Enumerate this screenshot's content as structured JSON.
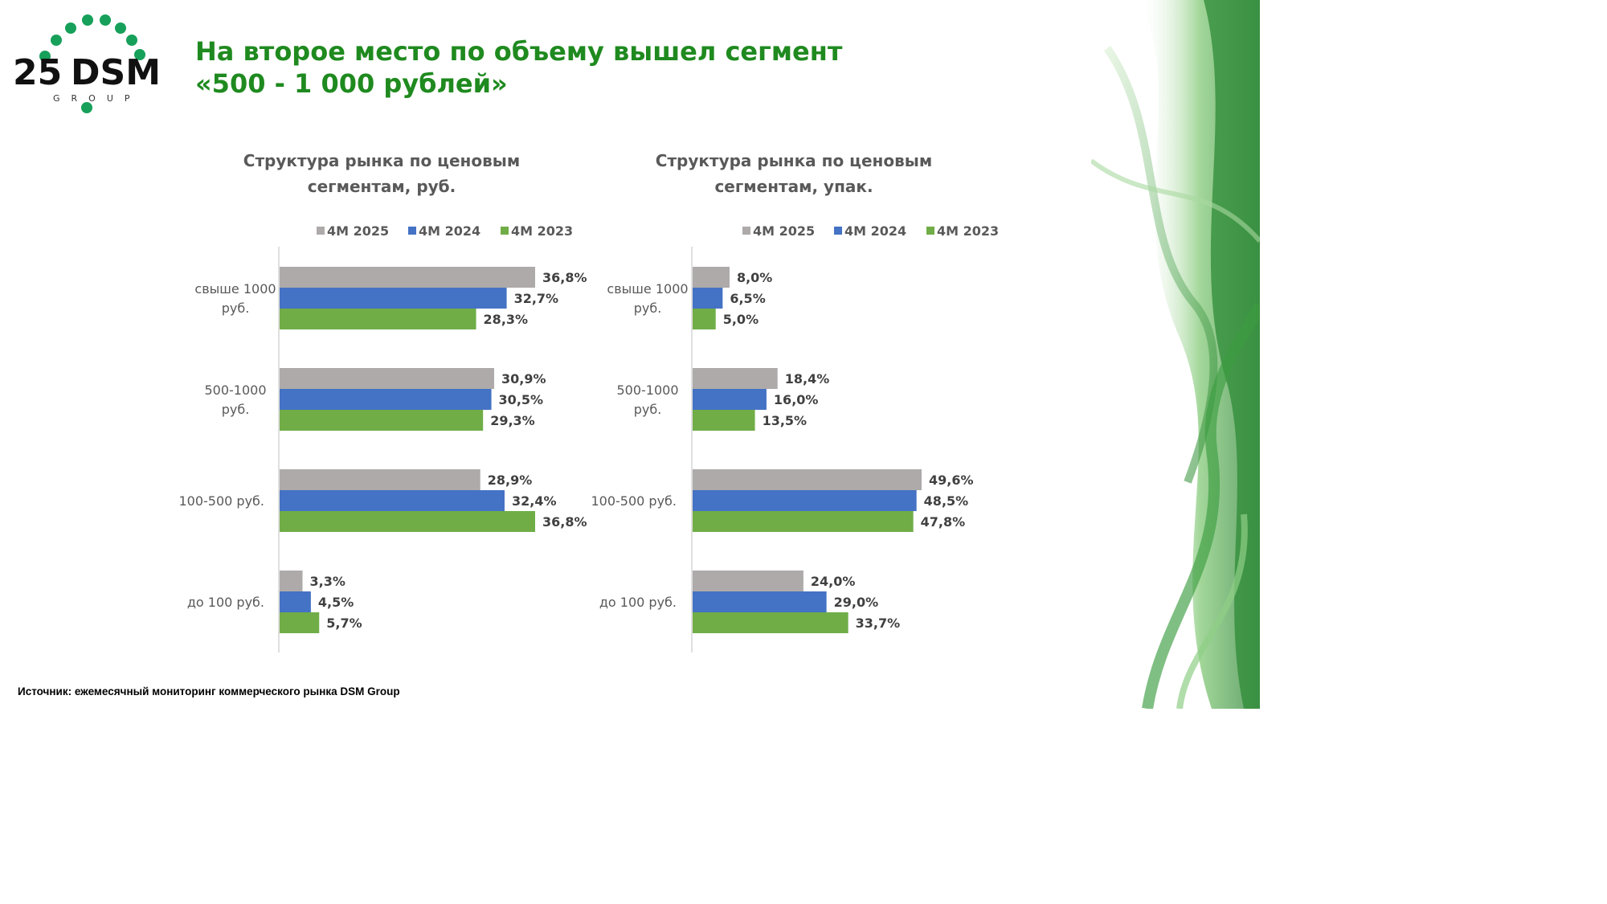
{
  "logo": {
    "number": "25",
    "brand": "DSM",
    "sub": "GROUP"
  },
  "headline": {
    "line1": "На второе место по объему вышел сегмент",
    "line2": "«500 - 1 000 рублей»"
  },
  "source": "Источник: ежемесячный мониторинг коммерческого рынка DSM Group",
  "colors": {
    "title": "#1f8a1f",
    "s2025": "#aeaaaa",
    "s2024": "#4472c4",
    "s2023": "#70ad47",
    "deco": "#3f9a3a"
  },
  "chart_data": [
    {
      "type": "bar",
      "orientation": "horizontal",
      "title_line1": "Структура рынка по ценовым",
      "title_line2": "сегментам, руб.",
      "categories": [
        [
          "свыше 1000",
          "руб."
        ],
        [
          "500-1000",
          "руб."
        ],
        [
          "100-500 руб."
        ],
        [
          "до 100 руб."
        ]
      ],
      "series": [
        {
          "name": "4M 2025",
          "color": "#aeaaaa",
          "values": [
            36.8,
            30.9,
            28.9,
            3.3
          ],
          "labels": [
            "36,8%",
            "30,9%",
            "28,9%",
            "3,3%"
          ]
        },
        {
          "name": "4M 2024",
          "color": "#4472c4",
          "values": [
            32.7,
            30.5,
            32.4,
            4.5
          ],
          "labels": [
            "32,7%",
            "30,5%",
            "32,4%",
            "4,5%"
          ]
        },
        {
          "name": "4M 2023",
          "color": "#70ad47",
          "values": [
            28.3,
            29.3,
            36.8,
            5.7
          ],
          "labels": [
            "28,3%",
            "29,3%",
            "36,8%",
            "5,7%"
          ]
        }
      ],
      "xlim": [
        0,
        36.8
      ],
      "legend": "top",
      "grid": false
    },
    {
      "type": "bar",
      "orientation": "horizontal",
      "title_line1": "Структура рынка по ценовым",
      "title_line2": "сегментам, упак.",
      "categories": [
        [
          "свыше 1000",
          "руб."
        ],
        [
          "500-1000",
          "руб."
        ],
        [
          "100-500 руб."
        ],
        [
          "до 100 руб."
        ]
      ],
      "series": [
        {
          "name": "4M 2025",
          "color": "#aeaaaa",
          "values": [
            8.0,
            18.4,
            49.6,
            24.0
          ],
          "labels": [
            "8,0%",
            "18,4%",
            "49,6%",
            "24,0%"
          ]
        },
        {
          "name": "4M 2024",
          "color": "#4472c4",
          "values": [
            6.5,
            16.0,
            48.5,
            29.0
          ],
          "labels": [
            "6,5%",
            "16,0%",
            "48,5%",
            "29,0%"
          ]
        },
        {
          "name": "4M 2023",
          "color": "#70ad47",
          "values": [
            5.0,
            13.5,
            47.8,
            33.7
          ],
          "labels": [
            "5,0%",
            "13,5%",
            "47,8%",
            "33,7%"
          ]
        }
      ],
      "xlim": [
        0,
        49.6
      ],
      "legend": "top",
      "grid": false
    }
  ]
}
